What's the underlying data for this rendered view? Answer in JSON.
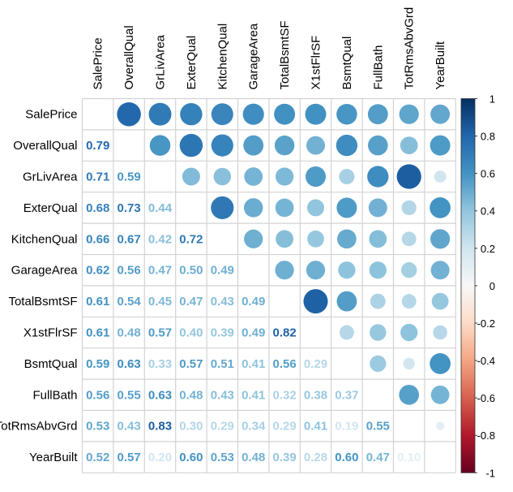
{
  "chart_data": {
    "type": "heatmap",
    "style": "corrplot-mixed: lower triangle numbers, upper triangle circles (size and color by correlation), diagonal blank",
    "variables": [
      "SalePrice",
      "OverallQual",
      "GrLivArea",
      "ExterQual",
      "KitchenQual",
      "GarageArea",
      "TotalBsmtSF",
      "X1stFlrSF",
      "BsmtQual",
      "FullBath",
      "TotRmsAbvGrd",
      "YearBuilt"
    ],
    "lower_triangle": [
      [],
      [
        0.79
      ],
      [
        0.71,
        0.59
      ],
      [
        0.68,
        0.73,
        0.44
      ],
      [
        0.66,
        0.67,
        0.42,
        0.72
      ],
      [
        0.62,
        0.56,
        0.47,
        0.5,
        0.49
      ],
      [
        0.61,
        0.54,
        0.45,
        0.47,
        0.43,
        0.49
      ],
      [
        0.61,
        0.48,
        0.57,
        0.4,
        0.39,
        0.49,
        0.82
      ],
      [
        0.59,
        0.63,
        0.33,
        0.57,
        0.51,
        0.41,
        0.56,
        0.29
      ],
      [
        0.56,
        0.55,
        0.63,
        0.48,
        0.43,
        0.41,
        0.32,
        0.38,
        0.37
      ],
      [
        0.53,
        0.43,
        0.83,
        0.3,
        0.29,
        0.34,
        0.29,
        0.41,
        0.19,
        0.55
      ],
      [
        0.52,
        0.57,
        0.2,
        0.6,
        0.53,
        0.48,
        0.39,
        0.28,
        0.6,
        0.47,
        0.1
      ]
    ],
    "colorbar": {
      "range": [
        -1,
        1
      ],
      "ticks": [
        "1",
        "0.8",
        "0.6",
        "0.4",
        "0.2",
        "0",
        "-0.2",
        "-0.4",
        "-0.6",
        "-0.8",
        "-1"
      ],
      "colors": [
        "#67001F",
        "#B2182B",
        "#D6604D",
        "#F4A582",
        "#FDDBC7",
        "#F7F7F7",
        "#D1E5F0",
        "#92C5DE",
        "#4393C3",
        "#2166AC",
        "#053061"
      ]
    },
    "grid": true,
    "legend": "right"
  }
}
